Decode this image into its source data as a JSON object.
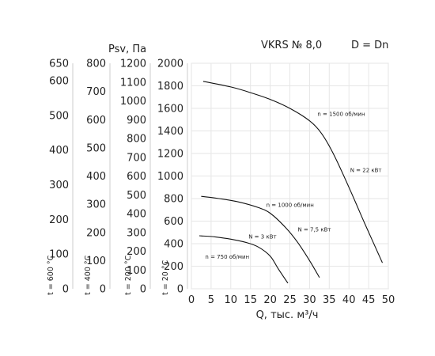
{
  "header": {
    "model": "VKRS № 8,0",
    "diameter": "D = Dn"
  },
  "chart_data": {
    "type": "line",
    "title": "VKRS № 8,0",
    "xlabel": "Q, тыс. м³/ч",
    "ylabel": "Psv, Па",
    "xlim": [
      0,
      50
    ],
    "ylim": [
      0,
      2000
    ],
    "x_ticks": [
      "0",
      "5",
      "10",
      "15",
      "20",
      "25",
      "30",
      "35",
      "40",
      "45",
      "50"
    ],
    "y_ticks": [
      "0",
      "200",
      "400",
      "600",
      "800",
      "1000",
      "1200",
      "1400",
      "1600",
      "1800",
      "2000"
    ],
    "grid": true,
    "temperature_axes": [
      {
        "label": "t = 20 °C",
        "ticks": [
          "0",
          "200",
          "400",
          "600",
          "800",
          "1000",
          "1200",
          "1400",
          "1600",
          "1800",
          "2000"
        ],
        "values": [
          0,
          200,
          400,
          600,
          800,
          1000,
          1200,
          1400,
          1600,
          1800,
          2000
        ]
      },
      {
        "label": "t = 200 °C",
        "ticks": [
          "0",
          "100",
          "200",
          "300",
          "400",
          "500",
          "600",
          "700",
          "800",
          "900",
          "1000",
          "1100",
          "1200"
        ],
        "values": [
          0,
          100,
          200,
          300,
          400,
          500,
          600,
          700,
          800,
          900,
          1000,
          1100,
          1200
        ]
      },
      {
        "label": "t = 400 °C",
        "ticks": [
          "0",
          "100",
          "200",
          "300",
          "400",
          "500",
          "600",
          "700",
          "800"
        ],
        "values": [
          0,
          100,
          200,
          300,
          400,
          500,
          600,
          700,
          800
        ]
      },
      {
        "label": "t = 600 °C",
        "ticks": [
          "0",
          "100",
          "200",
          "300",
          "400",
          "500",
          "600",
          "650"
        ],
        "values": [
          0,
          100,
          200,
          300,
          400,
          500,
          600,
          650
        ]
      }
    ],
    "series": [
      {
        "name": "n = 1500 об/мин",
        "x": [
          3,
          10,
          15,
          20,
          25,
          30,
          33,
          36,
          40,
          44,
          48.5
        ],
        "y": [
          1840,
          1790,
          1740,
          1680,
          1600,
          1490,
          1380,
          1200,
          900,
          580,
          230
        ]
      },
      {
        "name": "n = 1000 об/мин",
        "x": [
          2.5,
          7,
          12,
          17,
          20,
          24,
          27,
          30,
          32.5
        ],
        "y": [
          820,
          800,
          770,
          720,
          670,
          540,
          410,
          250,
          100
        ]
      },
      {
        "name": "n = 750 об/мин",
        "x": [
          2,
          6,
          10,
          14,
          17,
          20,
          22,
          24.5
        ],
        "y": [
          470,
          460,
          440,
          410,
          370,
          290,
          180,
          50
        ]
      }
    ],
    "annotations": [
      {
        "text": "n = 1500 об/мин",
        "x": 32,
        "y": 1535
      },
      {
        "text": "N = 22 кВт",
        "x": 40.3,
        "y": 1035
      },
      {
        "text": "n = 1000 об/мин",
        "x": 19,
        "y": 725
      },
      {
        "text": "N = 7,5 кВт",
        "x": 27,
        "y": 510
      },
      {
        "text": "N = 3 кВт",
        "x": 14.5,
        "y": 445
      },
      {
        "text": "n = 750 об/мин",
        "x": 3.5,
        "y": 265
      }
    ]
  }
}
